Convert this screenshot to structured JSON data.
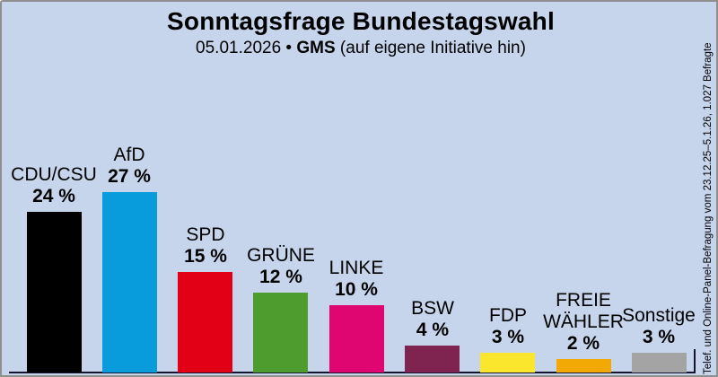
{
  "header": {
    "title": "Sonntagsfrage Bundestagswahl",
    "subtitle_date": "05.01.2026",
    "subtitle_separator": "•",
    "subtitle_source": "GMS",
    "subtitle_note": "(auf eigene Initiative hin)"
  },
  "source_note": "Telef. und Online-Panel-Befragung vom 23.12.25–5.1.26, 1.027 Befragte",
  "colors": {
    "background": "#C6D4EC",
    "axis": "#14142D",
    "border": "#8F8F8F",
    "label_text": "#000000"
  },
  "chart_data": {
    "type": "bar",
    "title": "Sonntagsfrage Bundestagswahl",
    "subtitle": "05.01.2026 • GMS (auf eigene Initiative hin)",
    "unit": "%",
    "ylim": [
      0,
      28
    ],
    "grid": false,
    "legend": "none",
    "value_labels": "above bars, bold, with party name above",
    "categories": [
      "CDU/CSU",
      "AfD",
      "SPD",
      "GRÜNE",
      "LINKE",
      "BSW",
      "FDP",
      "FREIE WÄHLER",
      "Sonstige"
    ],
    "values": [
      24,
      27,
      15,
      12,
      10,
      4,
      3,
      2,
      3
    ],
    "bars": [
      {
        "party": "CDU/CSU",
        "label_lines": [
          "CDU/CSU"
        ],
        "value": 24,
        "value_label": "24 %",
        "color": "#000000"
      },
      {
        "party": "AfD",
        "label_lines": [
          "AfD"
        ],
        "value": 27,
        "value_label": "27 %",
        "color": "#089CDC"
      },
      {
        "party": "SPD",
        "label_lines": [
          "SPD"
        ],
        "value": 15,
        "value_label": "15 %",
        "color": "#E20017"
      },
      {
        "party": "GRÜNE",
        "label_lines": [
          "GRÜNE"
        ],
        "value": 12,
        "value_label": "12 %",
        "color": "#4E9C2D"
      },
      {
        "party": "LINKE",
        "label_lines": [
          "LINKE"
        ],
        "value": 10,
        "value_label": "10 %",
        "color": "#DF0672"
      },
      {
        "party": "BSW",
        "label_lines": [
          "BSW"
        ],
        "value": 4,
        "value_label": "4 %",
        "color": "#7F2350"
      },
      {
        "party": "FDP",
        "label_lines": [
          "FDP"
        ],
        "value": 3,
        "value_label": "3 %",
        "color": "#F9E62D"
      },
      {
        "party": "FREIE WÄHLER",
        "label_lines": [
          "FREIE",
          "WÄHLER"
        ],
        "value": 2,
        "value_label": "2 %",
        "color": "#F2A805"
      },
      {
        "party": "Sonstige",
        "label_lines": [
          "Sonstige"
        ],
        "value": 3,
        "value_label": "3 %",
        "color": "#A5A4A5"
      }
    ]
  }
}
